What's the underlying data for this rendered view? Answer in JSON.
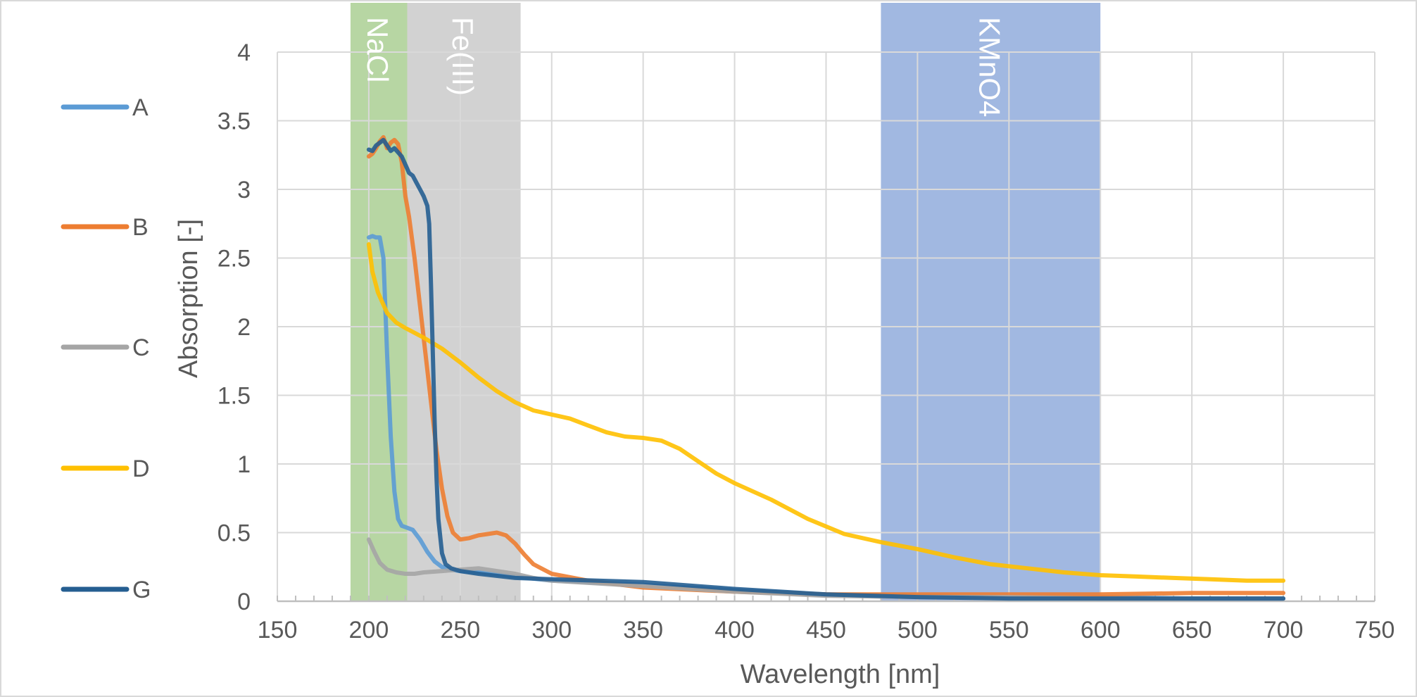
{
  "chart_data": {
    "type": "line",
    "title": "",
    "xlabel": "Wavelength [nm]",
    "ylabel": "Absorption [-]",
    "xlim": [
      150,
      750
    ],
    "ylim": [
      0,
      4
    ],
    "x_ticks": [
      150,
      200,
      250,
      300,
      350,
      400,
      450,
      500,
      550,
      600,
      650,
      700,
      750
    ],
    "y_ticks": [
      0,
      0.5,
      1,
      1.5,
      2,
      2.5,
      3,
      3.5,
      4
    ],
    "grid": true,
    "legend_position": "left",
    "bands": [
      {
        "label": "NaCl",
        "x_range": [
          190,
          221
        ],
        "color": "#70ad47",
        "opacity": 0.5
      },
      {
        "label": "Fe(III)",
        "x_range": [
          221,
          283
        ],
        "color": "#a5a5a5",
        "opacity": 0.5
      },
      {
        "label": "KMnO4",
        "x_range": [
          480,
          600
        ],
        "color": "#4472c4",
        "opacity": 0.5
      }
    ],
    "series": [
      {
        "name": "A",
        "color": "#5b9bd5",
        "x": [
          200,
          202,
          204,
          206,
          208,
          210,
          212,
          214,
          216,
          218,
          220,
          224,
          228,
          232,
          236,
          240,
          245,
          250,
          260,
          280,
          300,
          350,
          400,
          450,
          500,
          550,
          600,
          650,
          700
        ],
        "y": [
          2.65,
          2.66,
          2.65,
          2.65,
          2.5,
          1.8,
          1.2,
          0.8,
          0.6,
          0.55,
          0.54,
          0.52,
          0.45,
          0.36,
          0.29,
          0.25,
          0.23,
          0.22,
          0.21,
          0.18,
          0.15,
          0.12,
          0.08,
          0.05,
          0.04,
          0.03,
          0.03,
          0.02,
          0.02
        ]
      },
      {
        "name": "B",
        "color": "#ed7d31",
        "x": [
          200,
          202,
          204,
          206,
          208,
          210,
          212,
          214,
          216,
          218,
          220,
          222,
          225,
          228,
          231,
          234,
          237,
          240,
          243,
          246,
          250,
          255,
          260,
          265,
          270,
          275,
          280,
          285,
          290,
          300,
          320,
          350,
          400,
          450,
          500,
          550,
          600,
          650,
          700
        ],
        "y": [
          3.24,
          3.26,
          3.3,
          3.35,
          3.38,
          3.3,
          3.34,
          3.36,
          3.33,
          3.2,
          2.95,
          2.8,
          2.5,
          2.15,
          1.8,
          1.45,
          1.1,
          0.82,
          0.62,
          0.5,
          0.45,
          0.46,
          0.48,
          0.49,
          0.5,
          0.48,
          0.42,
          0.34,
          0.27,
          0.2,
          0.15,
          0.1,
          0.07,
          0.05,
          0.05,
          0.05,
          0.05,
          0.06,
          0.06
        ]
      },
      {
        "name": "C",
        "color": "#a5a5a5",
        "x": [
          200,
          203,
          206,
          210,
          215,
          220,
          225,
          230,
          240,
          250,
          260,
          270,
          280,
          290,
          300,
          350,
          400,
          450,
          500,
          550,
          600,
          650,
          700
        ],
        "y": [
          0.45,
          0.36,
          0.28,
          0.23,
          0.21,
          0.2,
          0.2,
          0.21,
          0.22,
          0.23,
          0.24,
          0.22,
          0.2,
          0.17,
          0.15,
          0.11,
          0.07,
          0.04,
          0.03,
          0.03,
          0.02,
          0.02,
          0.02
        ]
      },
      {
        "name": "D",
        "color": "#ffc000",
        "x": [
          200,
          202,
          205,
          210,
          215,
          220,
          230,
          240,
          250,
          260,
          270,
          280,
          290,
          300,
          310,
          320,
          330,
          340,
          350,
          360,
          370,
          380,
          390,
          400,
          420,
          440,
          460,
          480,
          500,
          520,
          540,
          560,
          580,
          600,
          620,
          640,
          660,
          680,
          700
        ],
        "y": [
          2.6,
          2.4,
          2.25,
          2.1,
          2.03,
          1.99,
          1.92,
          1.84,
          1.74,
          1.63,
          1.53,
          1.45,
          1.39,
          1.36,
          1.33,
          1.28,
          1.23,
          1.2,
          1.19,
          1.17,
          1.11,
          1.02,
          0.93,
          0.86,
          0.74,
          0.6,
          0.49,
          0.43,
          0.38,
          0.32,
          0.27,
          0.24,
          0.21,
          0.19,
          0.18,
          0.17,
          0.16,
          0.15,
          0.15
        ]
      },
      {
        "name": "G",
        "color": "#255e91",
        "x": [
          200,
          202,
          204,
          206,
          208,
          210,
          212,
          214,
          216,
          218,
          220,
          222,
          224,
          226,
          228,
          230,
          232,
          233,
          234,
          235,
          236,
          237,
          238,
          240,
          242,
          245,
          250,
          260,
          280,
          300,
          350,
          400,
          450,
          500,
          550,
          600,
          650,
          700
        ],
        "y": [
          3.29,
          3.28,
          3.32,
          3.34,
          3.36,
          3.32,
          3.28,
          3.3,
          3.27,
          3.24,
          3.18,
          3.12,
          3.1,
          3.05,
          3.0,
          2.95,
          2.88,
          2.75,
          2.3,
          1.8,
          1.3,
          0.9,
          0.6,
          0.35,
          0.27,
          0.24,
          0.22,
          0.2,
          0.17,
          0.16,
          0.14,
          0.09,
          0.05,
          0.03,
          0.02,
          0.02,
          0.02,
          0.02
        ]
      }
    ]
  }
}
